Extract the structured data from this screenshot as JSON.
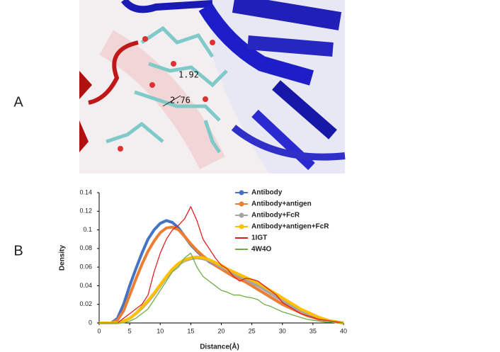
{
  "panels": [
    "A",
    "B"
  ],
  "image_labels": [
    "1.92",
    "2.76"
  ],
  "chart_data": {
    "type": "line",
    "x_label": "Distance(Å)",
    "y_label": "Density",
    "x": [
      0,
      1,
      2,
      3,
      4,
      5,
      6,
      7,
      8,
      9,
      10,
      11,
      12,
      13,
      14,
      15,
      16,
      17,
      18,
      19,
      20,
      21,
      22,
      23,
      24,
      25,
      26,
      27,
      28,
      29,
      30,
      31,
      32,
      33,
      34,
      35,
      36,
      37,
      38,
      39,
      40
    ],
    "series": [
      {
        "name": "Antibody",
        "color": "#4472c4",
        "values": [
          0,
          0,
          0,
          0.005,
          0.02,
          0.04,
          0.058,
          0.075,
          0.09,
          0.1,
          0.107,
          0.11,
          0.108,
          0.102,
          0.093,
          0.084,
          0.077,
          0.071,
          0.066,
          0.062,
          0.058,
          0.054,
          0.05,
          0.047,
          0.044,
          0.04,
          0.036,
          0.032,
          0.028,
          0.024,
          0.02,
          0.017,
          0.014,
          0.011,
          0.008,
          0.006,
          0.004,
          0.003,
          0.002,
          0.001,
          0
        ]
      },
      {
        "name": "Antibody+antigen",
        "color": "#ed7d31",
        "values": [
          0,
          0,
          0,
          0.003,
          0.013,
          0.03,
          0.047,
          0.063,
          0.077,
          0.088,
          0.097,
          0.102,
          0.103,
          0.1,
          0.093,
          0.085,
          0.078,
          0.072,
          0.067,
          0.062,
          0.058,
          0.054,
          0.05,
          0.047,
          0.044,
          0.04,
          0.036,
          0.032,
          0.028,
          0.024,
          0.02,
          0.017,
          0.014,
          0.011,
          0.008,
          0.006,
          0.004,
          0.003,
          0.002,
          0.001,
          0
        ]
      },
      {
        "name": "Antibody+FcR",
        "color": "#a5a5a5",
        "values": [
          0,
          0,
          0,
          0,
          0.002,
          0.005,
          0.01,
          0.016,
          0.023,
          0.031,
          0.04,
          0.049,
          0.057,
          0.063,
          0.067,
          0.069,
          0.07,
          0.069,
          0.067,
          0.064,
          0.06,
          0.057,
          0.053,
          0.05,
          0.047,
          0.043,
          0.04,
          0.036,
          0.032,
          0.028,
          0.024,
          0.02,
          0.016,
          0.013,
          0.01,
          0.007,
          0.005,
          0.003,
          0.002,
          0.001,
          0
        ]
      },
      {
        "name": "Antibody+antigen+FcR",
        "color": "#ffc000",
        "values": [
          0,
          0,
          0,
          0,
          0.002,
          0.005,
          0.01,
          0.017,
          0.024,
          0.032,
          0.041,
          0.05,
          0.058,
          0.064,
          0.068,
          0.07,
          0.071,
          0.07,
          0.068,
          0.065,
          0.062,
          0.058,
          0.055,
          0.052,
          0.049,
          0.046,
          0.043,
          0.039,
          0.035,
          0.031,
          0.027,
          0.023,
          0.019,
          0.015,
          0.012,
          0.009,
          0.006,
          0.004,
          0.002,
          0.001,
          0
        ]
      },
      {
        "name": "1IGT",
        "color": "#e02020",
        "values": [
          0,
          0,
          0,
          0,
          0.005,
          0.01,
          0.015,
          0.02,
          0.03,
          0.055,
          0.075,
          0.09,
          0.1,
          0.105,
          0.112,
          0.125,
          0.11,
          0.09,
          0.08,
          0.07,
          0.062,
          0.058,
          0.05,
          0.045,
          0.048,
          0.047,
          0.045,
          0.04,
          0.035,
          0.03,
          0.022,
          0.018,
          0.014,
          0.01,
          0.008,
          0.006,
          0.004,
          0.003,
          0.002,
          0.001,
          0
        ]
      },
      {
        "name": "4W4O",
        "color": "#70ad47",
        "values": [
          0,
          0,
          0,
          0,
          0,
          0.002,
          0.005,
          0.01,
          0.015,
          0.025,
          0.035,
          0.045,
          0.055,
          0.06,
          0.07,
          0.075,
          0.06,
          0.05,
          0.045,
          0.04,
          0.035,
          0.033,
          0.03,
          0.03,
          0.028,
          0.027,
          0.025,
          0.02,
          0.018,
          0.015,
          0.012,
          0.01,
          0.008,
          0.006,
          0.004,
          0.003,
          0.002,
          0.001,
          0.001,
          0,
          0
        ]
      }
    ],
    "xlim": [
      0,
      40
    ],
    "xticks": [
      0,
      5,
      10,
      15,
      20,
      25,
      30,
      35,
      40
    ],
    "ylim": [
      0,
      0.14
    ],
    "yticks": [
      0,
      0.02,
      0.04,
      0.06,
      0.08,
      0.1,
      0.12,
      0.14
    ],
    "grid": false,
    "legend": "upper right"
  }
}
